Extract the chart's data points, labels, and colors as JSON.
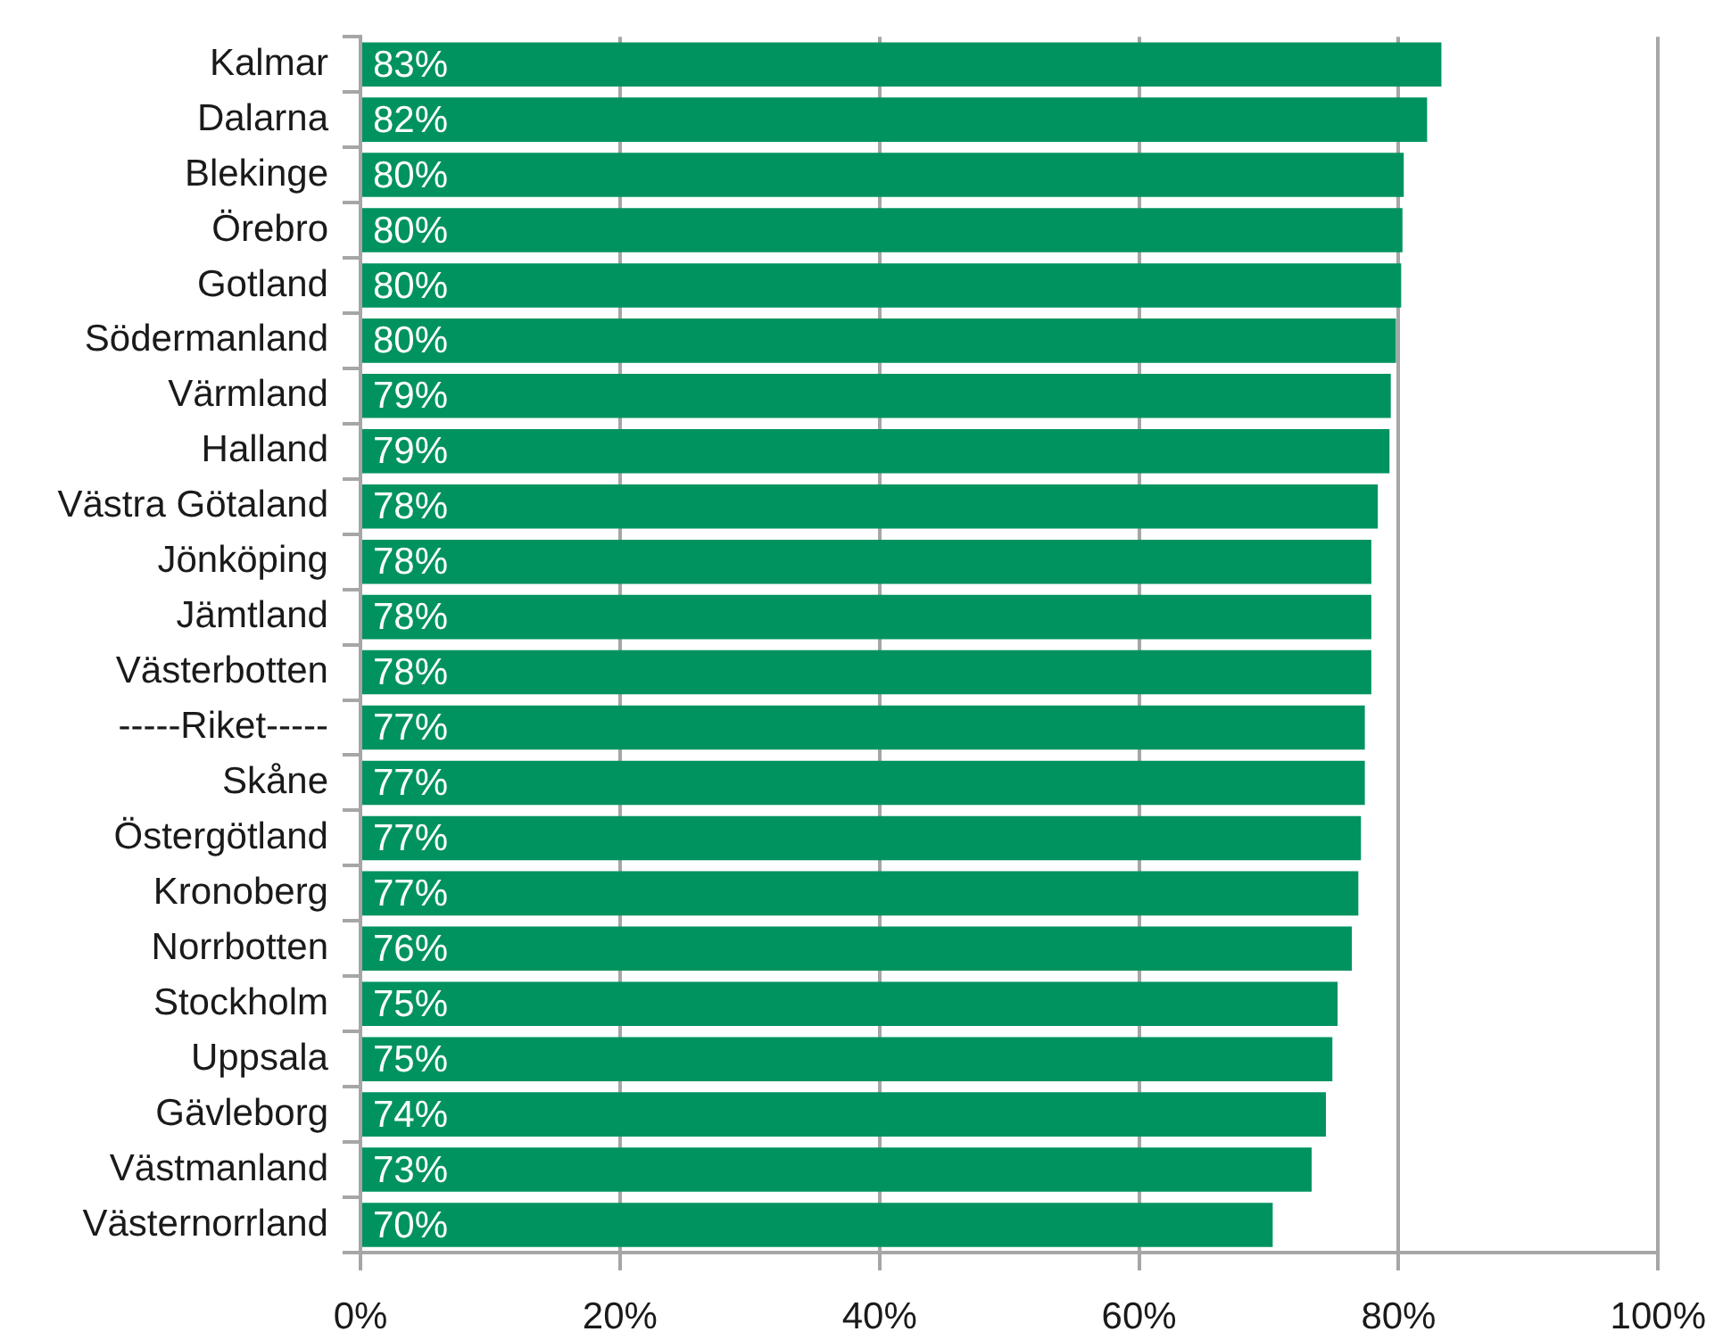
{
  "chart_data": {
    "type": "bar",
    "orientation": "horizontal",
    "categories": [
      "Kalmar",
      "Dalarna",
      "Blekinge",
      "Örebro",
      "Gotland",
      "Södermanland",
      "Värmland",
      "Halland",
      "Västra Götaland",
      "Jönköping",
      "Jämtland",
      "Västerbotten",
      "-----Riket-----",
      "Skåne",
      "Östergötland",
      "Kronoberg",
      "Norrbotten",
      "Stockholm",
      "Uppsala",
      "Gävleborg",
      "Västmanland",
      "Västernorrland"
    ],
    "values": [
      83.3,
      82.2,
      80.4,
      80.3,
      80.2,
      79.8,
      79.4,
      79.3,
      78.4,
      77.9,
      77.9,
      77.9,
      77.4,
      77.4,
      77.1,
      76.9,
      76.4,
      75.3,
      74.9,
      74.4,
      73.3,
      70.3
    ],
    "value_labels": [
      "83%",
      "82%",
      "80%",
      "80%",
      "80%",
      "80%",
      "79%",
      "79%",
      "78%",
      "78%",
      "78%",
      "78%",
      "77%",
      "77%",
      "77%",
      "77%",
      "76%",
      "75%",
      "75%",
      "74%",
      "73%",
      "70%"
    ],
    "color": "#00935f",
    "xlim": [
      0,
      100
    ],
    "xticks": [
      {
        "value": 0,
        "label": "0%"
      },
      {
        "value": 20,
        "label": "20%"
      },
      {
        "value": 40,
        "label": "40%"
      },
      {
        "value": 60,
        "label": "60%"
      },
      {
        "value": 80,
        "label": "80%"
      },
      {
        "value": 100,
        "label": "100%"
      }
    ],
    "grid": "x"
  }
}
